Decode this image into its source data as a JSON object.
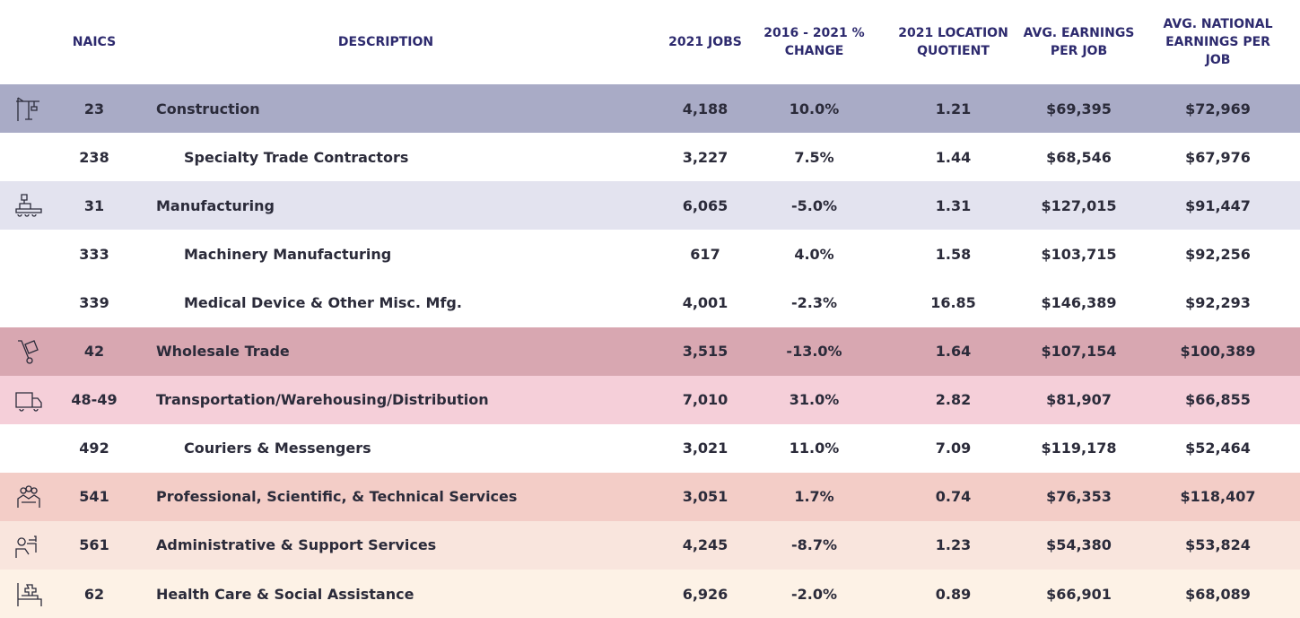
{
  "table": {
    "header": [
      "NAICS",
      "DESCRIPTION",
      "2021 JOBS",
      "2016 - 2021 % CHANGE",
      "2021 LOCATION QUOTIENT",
      "AVG. EARNINGS PER JOB",
      "AVG. NATIONAL EARNINGS PER JOB"
    ],
    "sectors": [
      {
        "naics": "23",
        "description": "Construction",
        "values": [
          "4,188",
          "10.0%",
          "1.21",
          "$69,395",
          "$72,969"
        ],
        "color": "#a9abc6",
        "subsectors": [
          {
            "naics": "238",
            "description": "Specialty Trade Contractors",
            "values": [
              "3,227",
              "7.5%",
              "1.44",
              "$68,546",
              "$67,976"
            ]
          }
        ]
      },
      {
        "naics": "31",
        "description": "Manufacturing",
        "values": [
          "6,065",
          "-5.0%",
          "1.31",
          "$127,015",
          "$91,447"
        ],
        "color": "#e3e3ef",
        "subsectors": [
          {
            "naics": "333",
            "description": "Machinery Manufacturing",
            "values": [
              "617",
              "4.0%",
              "1.58",
              "$103,715",
              "$92,256"
            ]
          },
          {
            "naics": "339",
            "description": "Medical Device & Other Misc. Mfg.",
            "values": [
              "4,001",
              "-2.3%",
              "16.85",
              "$146,389",
              "$92,293"
            ]
          }
        ]
      },
      {
        "naics": "42",
        "description": "Wholesale Trade",
        "values": [
          "3,515",
          "-13.0%",
          "1.64",
          "$107,154",
          "$100,389"
        ],
        "color": "#d8a7b1",
        "subsectors": []
      },
      {
        "naics": "48-49",
        "description": "Transportation/Warehousing/Distribution",
        "values": [
          "7,010",
          "31.0%",
          "2.82",
          "$81,907",
          "$66,855"
        ],
        "color": "#f5cfd9",
        "subsectors": [
          {
            "naics": "492",
            "description": "Couriers & Messengers",
            "values": [
              "3,021",
              "11.0%",
              "7.09",
              "$119,178",
              "$52,464"
            ]
          }
        ]
      },
      {
        "naics": "541",
        "description": "Professional, Scientific, & Technical Services",
        "values": [
          "3,051",
          "1.7%",
          "0.74",
          "$76,353",
          "$118,407"
        ],
        "color": "#f3cdc7",
        "subsectors": []
      },
      {
        "naics": "561",
        "description": "Administrative & Support Services",
        "values": [
          "4,245",
          "-8.7%",
          "1.23",
          "$54,380",
          "$53,824"
        ],
        "color": "#f9e5dd",
        "subsectors": []
      },
      {
        "naics": "62",
        "description": "Health Care & Social Assistance",
        "values": [
          "6,926",
          "-2.0%",
          "0.89",
          "$66,901",
          "$68,089"
        ],
        "color": "#fdf2e6",
        "subsectors": []
      }
    ]
  }
}
